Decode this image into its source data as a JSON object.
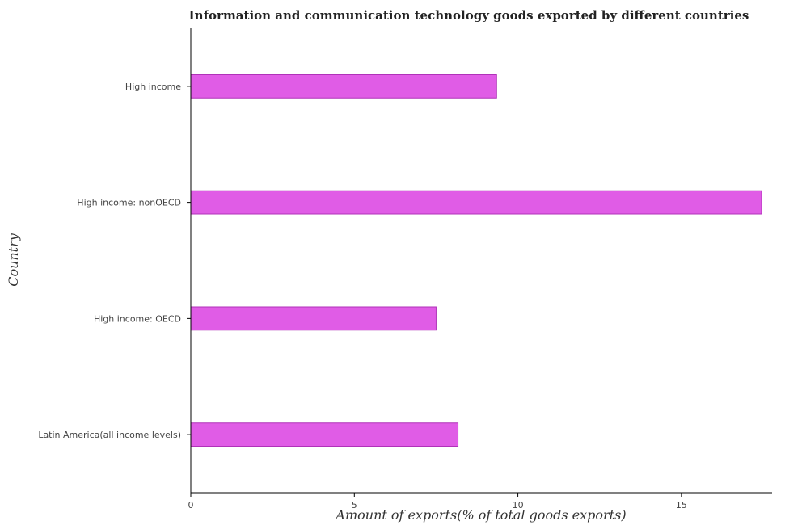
{
  "chart_data": {
    "type": "bar",
    "orientation": "horizontal",
    "title": "Information and communication technology goods exported by different countries",
    "xlabel": "Amount of exports(% of total goods exports)",
    "ylabel": "Country",
    "categories": [
      "High income",
      "High income: nonOECD",
      "High income: OECD",
      "Latin America(all income levels)"
    ],
    "values": [
      9.35,
      17.45,
      7.5,
      8.17
    ],
    "xlim": [
      0,
      18
    ],
    "xticks": [
      0,
      5,
      10,
      15
    ],
    "xtick_labels": [
      "0",
      "5",
      "10",
      "15"
    ],
    "bar_color": "#e05ce6",
    "grid": false
  }
}
